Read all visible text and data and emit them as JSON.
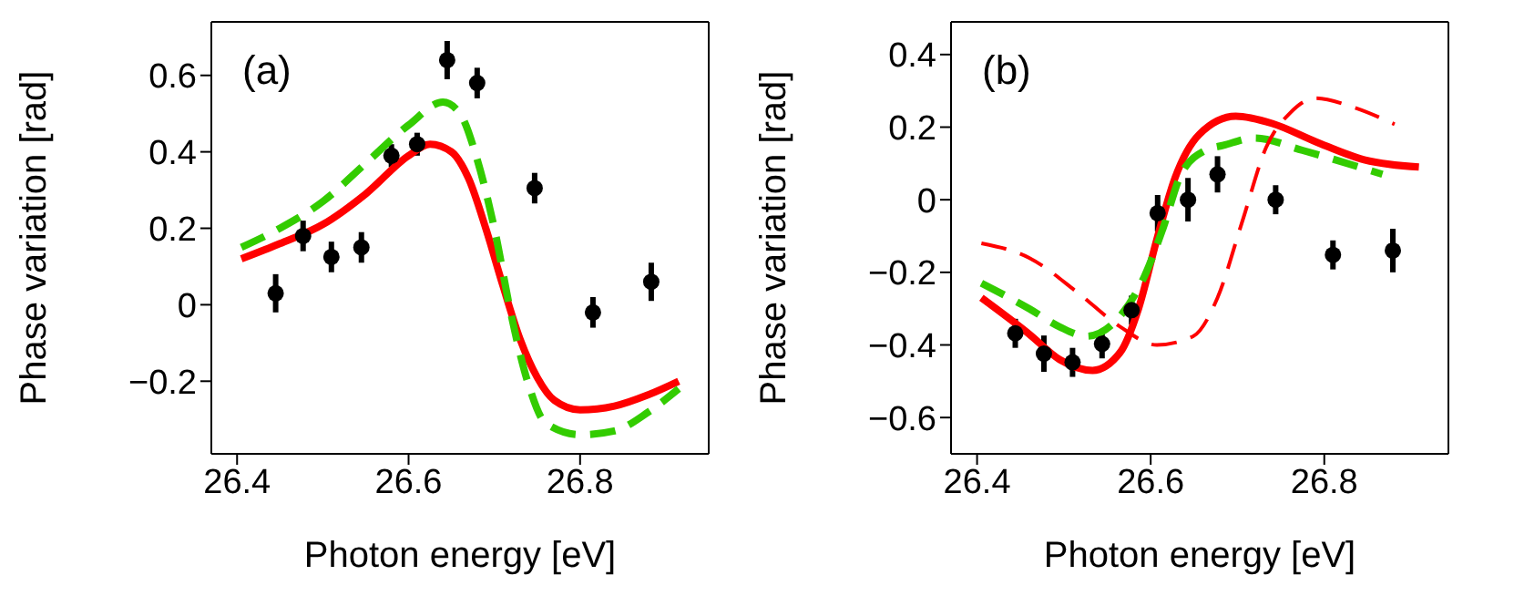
{
  "chart_data": [
    {
      "type": "line",
      "annotations": [
        "(a)"
      ],
      "xlabel": "Photon energy [eV]",
      "ylabel": "Phase variation [rad]",
      "xlim": [
        26.37,
        26.95
      ],
      "ylim": [
        -0.39,
        0.74
      ],
      "xticks": [
        26.4,
        26.6,
        26.8
      ],
      "yticks": [
        {
          "value": -0.2,
          "label": "−0.2"
        },
        0,
        0.2,
        0.4,
        0.6
      ],
      "series": [
        {
          "type": "scatter",
          "marker": "circle",
          "color": "#000000",
          "x": [
            26.445,
            26.477,
            26.51,
            26.545,
            26.58,
            26.61,
            26.645,
            26.68,
            26.747,
            26.815,
            26.883
          ],
          "values": [
            0.03,
            0.18,
            0.125,
            0.15,
            0.39,
            0.42,
            0.64,
            0.58,
            0.305,
            -0.02,
            0.06
          ],
          "errors": [
            0.05,
            0.04,
            0.04,
            0.04,
            0.03,
            0.03,
            0.05,
            0.04,
            0.04,
            0.04,
            0.05
          ]
        },
        {
          "color": "#ff0000",
          "line_style": "solid",
          "x": [
            26.405,
            26.45,
            26.5,
            26.55,
            26.6,
            26.625,
            26.65,
            26.67,
            26.69,
            26.71,
            26.73,
            26.75,
            26.77,
            26.8,
            26.84,
            26.88,
            26.915
          ],
          "values": [
            0.12,
            0.16,
            0.21,
            0.29,
            0.39,
            0.42,
            0.4,
            0.33,
            0.2,
            0.05,
            -0.09,
            -0.19,
            -0.25,
            -0.275,
            -0.265,
            -0.235,
            -0.2
          ]
        },
        {
          "color": "#33cc00",
          "line_style": "dashed",
          "x": [
            26.405,
            26.45,
            26.5,
            26.55,
            26.6,
            26.64,
            26.66,
            26.68,
            26.7,
            26.72,
            26.74,
            26.76,
            26.8,
            26.84,
            26.88,
            26.915
          ],
          "values": [
            0.15,
            0.2,
            0.27,
            0.37,
            0.47,
            0.53,
            0.5,
            0.38,
            0.2,
            -0.03,
            -0.21,
            -0.31,
            -0.34,
            -0.33,
            -0.28,
            -0.22
          ]
        }
      ]
    },
    {
      "type": "line",
      "annotations": [
        "(b)"
      ],
      "xlabel": "Photon energy [eV]",
      "ylabel": "Phase variation [rad]",
      "xlim": [
        26.37,
        26.943
      ],
      "ylim": [
        -0.7,
        0.49
      ],
      "xticks": [
        26.4,
        26.6,
        26.8
      ],
      "yticks": [
        {
          "value": -0.6,
          "label": "−0.6"
        },
        {
          "value": -0.4,
          "label": "−0.4"
        },
        {
          "value": -0.2,
          "label": "−0.2"
        },
        0,
        0.2,
        0.4
      ],
      "series": [
        {
          "type": "scatter",
          "marker": "circle",
          "color": "#000000",
          "x": [
            26.444,
            26.477,
            26.51,
            26.544,
            26.578,
            26.608,
            26.643,
            26.677,
            26.744,
            26.81,
            26.879
          ],
          "values": [
            -0.368,
            -0.424,
            -0.448,
            -0.397,
            -0.304,
            -0.037,
            0.0,
            0.07,
            0.0,
            -0.152,
            -0.14
          ],
          "errors": [
            0.04,
            0.05,
            0.04,
            0.04,
            0.04,
            0.05,
            0.06,
            0.05,
            0.04,
            0.04,
            0.06
          ]
        },
        {
          "color": "#ff0000",
          "line_style": "solid",
          "x": [
            26.405,
            26.46,
            26.495,
            26.533,
            26.565,
            26.586,
            26.607,
            26.628,
            26.656,
            26.698,
            26.74,
            26.79,
            26.846,
            26.909
          ],
          "values": [
            -0.27,
            -0.37,
            -0.44,
            -0.47,
            -0.42,
            -0.3,
            -0.11,
            0.06,
            0.18,
            0.23,
            0.21,
            0.16,
            0.11,
            0.09
          ]
        },
        {
          "color": "#33cc00",
          "line_style": "dashed",
          "x": [
            26.405,
            26.46,
            26.495,
            26.526,
            26.565,
            26.593,
            26.614,
            26.635,
            26.663,
            26.684,
            26.72,
            26.775,
            26.867
          ],
          "values": [
            -0.23,
            -0.3,
            -0.35,
            -0.376,
            -0.32,
            -0.21,
            -0.08,
            0.07,
            0.136,
            0.15,
            0.17,
            0.136,
            0.07
          ]
        },
        {
          "color": "#ff0000",
          "line_style": "dashed",
          "x": [
            26.405,
            26.46,
            26.516,
            26.565,
            26.607,
            26.649,
            26.677,
            26.705,
            26.733,
            26.761,
            26.79,
            26.832,
            26.881
          ],
          "values": [
            -0.12,
            -0.16,
            -0.256,
            -0.35,
            -0.4,
            -0.376,
            -0.27,
            -0.064,
            0.144,
            0.24,
            0.28,
            0.256,
            0.208
          ]
        }
      ]
    }
  ]
}
